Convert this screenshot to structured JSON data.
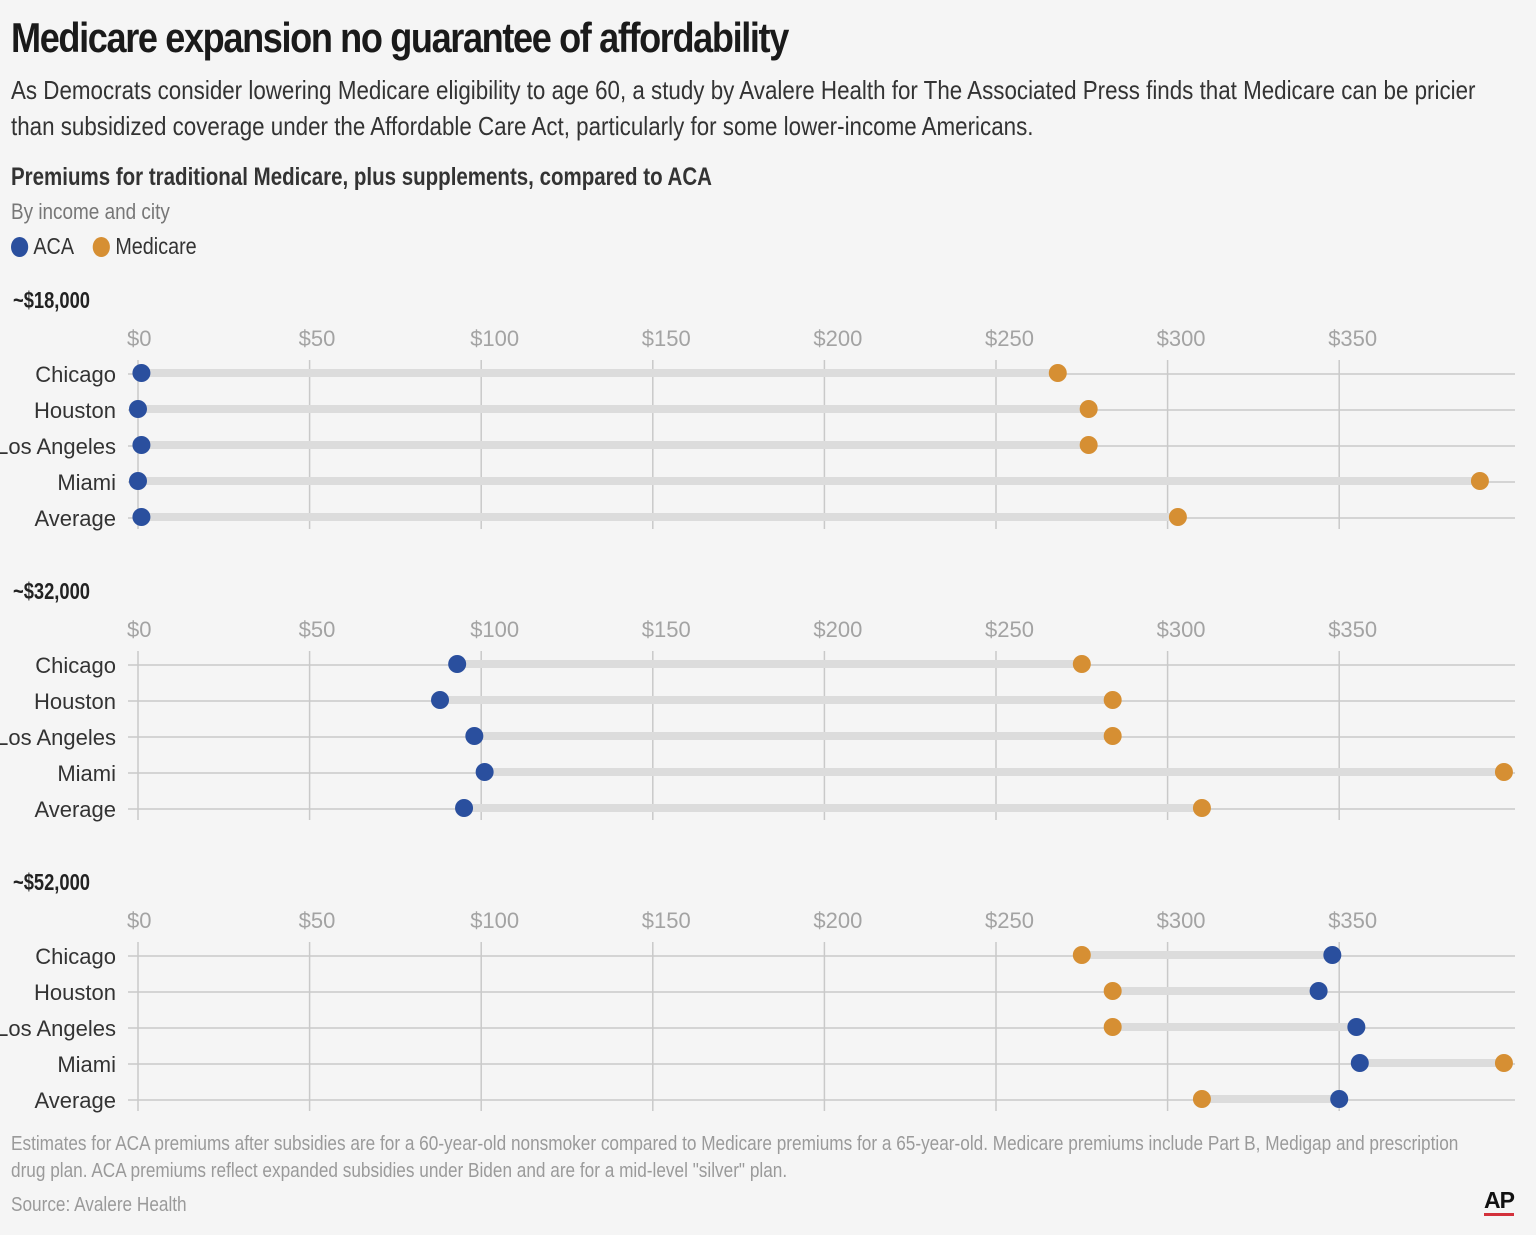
{
  "header": {
    "title": "Medicare expansion no guarantee of affordability",
    "subtitle": "As Democrats consider lowering Medicare eligibility to age 60, a study by Avalere Health for The Associated Press finds that Medicare can be pricier than subsidized coverage under the Affordable Care Act, particularly for some lower-income Americans."
  },
  "chart_data": {
    "type": "dumbbell",
    "title": "Premiums for traditional Medicare, plus supplements, compared to ACA",
    "subtitle": "By income and city",
    "legend": [
      {
        "name": "ACA",
        "color": "#2a4f9e"
      },
      {
        "name": "Medicare",
        "color": "#d68f33"
      }
    ],
    "xlim": [
      0,
      400
    ],
    "ticks": [
      0,
      50,
      100,
      150,
      200,
      250,
      300,
      350
    ],
    "tick_labels": [
      "$0",
      "$50",
      "$100",
      "$150",
      "$200",
      "$250",
      "$300",
      "$350"
    ],
    "categories": [
      "Chicago",
      "Houston",
      "Los Angeles",
      "Miami",
      "Average"
    ],
    "panels": [
      {
        "label": "~$18,000",
        "series": [
          {
            "name": "ACA",
            "values": [
              1,
              0,
              1,
              0,
              1
            ]
          },
          {
            "name": "Medicare",
            "values": [
              268,
              277,
              277,
              391,
              303
            ]
          }
        ]
      },
      {
        "label": "~$32,000",
        "series": [
          {
            "name": "ACA",
            "values": [
              93,
              88,
              98,
              101,
              95
            ]
          },
          {
            "name": "Medicare",
            "values": [
              275,
              284,
              284,
              398,
              310
            ]
          }
        ]
      },
      {
        "label": "~$52,000",
        "series": [
          {
            "name": "ACA",
            "values": [
              348,
              344,
              355,
              356,
              350
            ]
          },
          {
            "name": "Medicare",
            "values": [
              275,
              284,
              284,
              398,
              310
            ]
          }
        ]
      }
    ]
  },
  "footer": {
    "note": "Estimates for ACA premiums after subsidies are for a 60-year-old nonsmoker compared to Medicare premiums for a 65-year-old. Medicare premiums include Part B, Medigap and prescription drug plan. ACA premiums reflect expanded subsidies under Biden and are for a mid-level \"silver\" plan.",
    "source": "Source: Avalere Health",
    "logo": "AP"
  }
}
